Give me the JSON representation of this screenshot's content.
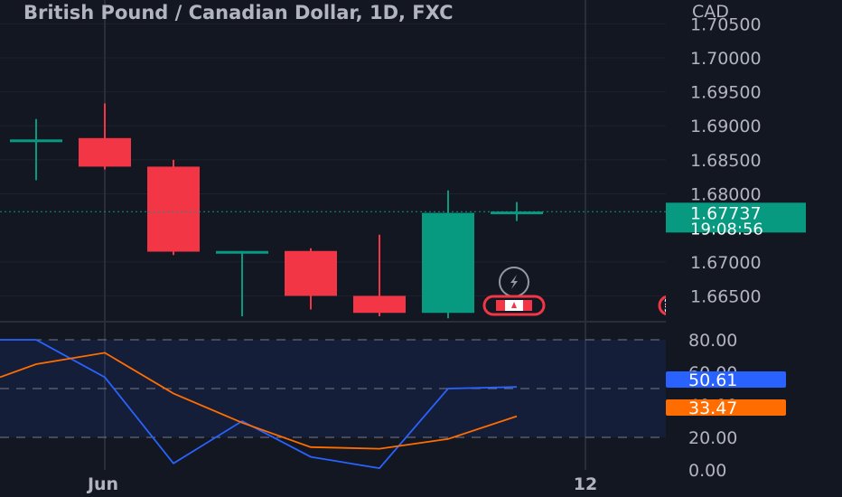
{
  "header": {
    "title": "British Pound / Canadian Dollar, 1D, FXC",
    "currency": "CAD"
  },
  "chart_data": [
    {
      "type": "candlestick",
      "title": "British Pound / Canadian Dollar, 1D, FXC",
      "ylim": [
        1.662,
        1.7085
      ],
      "y_ticks": [
        "1.70500",
        "1.70000",
        "1.69500",
        "1.69000",
        "1.68500",
        "1.68000",
        "1.67000",
        "1.66500"
      ],
      "y_tick_values": [
        1.705,
        1.7,
        1.695,
        1.69,
        1.685,
        1.68,
        1.67,
        1.665
      ],
      "x_ticks": [
        {
          "label": "Jun",
          "index": 1
        },
        {
          "label": "12",
          "index": 8
        }
      ],
      "candles": [
        {
          "open": 1.688,
          "high": 1.691,
          "low": 1.682,
          "close": 1.688
        },
        {
          "open": 1.6882,
          "high": 1.6933,
          "low": 1.6836,
          "close": 1.684
        },
        {
          "open": 1.684,
          "high": 1.685,
          "low": 1.671,
          "close": 1.6715
        },
        {
          "open": 1.6716,
          "high": 1.6716,
          "low": 1.662,
          "close": 1.6716
        },
        {
          "open": 1.6716,
          "high": 1.672,
          "low": 1.663,
          "close": 1.665
        },
        {
          "open": 1.665,
          "high": 1.674,
          "low": 1.662,
          "close": 1.6625
        },
        {
          "open": 1.6625,
          "high": 1.6805,
          "low": 1.6617,
          "close": 1.6772
        },
        {
          "open": 1.6773,
          "high": 1.6788,
          "low": 1.676,
          "close": 1.6774
        }
      ],
      "last_price": "1.67737",
      "countdown": "19:08:56",
      "colors": {
        "up": "#089981",
        "down": "#f23645",
        "background": "#131722"
      },
      "event_markers": [
        {
          "icon": "lightning-icon",
          "index": 7
        },
        {
          "icon": "canada-flag-icon",
          "index": 7
        },
        {
          "icon": "uk-flag-icon",
          "index": 9
        }
      ]
    },
    {
      "type": "line",
      "ylim": [
        0,
        90
      ],
      "y_ticks": [
        "80.00",
        "60.00",
        "40.00",
        "20.00",
        "0.00"
      ],
      "y_tick_values": [
        80,
        60,
        40,
        20,
        0
      ],
      "band": [
        20,
        80
      ],
      "x_start": -0.5,
      "series": [
        {
          "color": "#2962ff",
          "x": [
            -0.5,
            0,
            1,
            2,
            3,
            4,
            5,
            6,
            7
          ],
          "values": [
            80,
            80,
            57,
            4,
            30,
            8,
            1,
            50,
            51
          ]
        },
        {
          "color": "#ff6d00",
          "x": [
            -0.5,
            0,
            1,
            2,
            3,
            4,
            5,
            6,
            7
          ],
          "values": [
            57,
            65,
            72,
            47,
            29,
            14,
            13,
            19,
            33
          ]
        }
      ],
      "last_values": [
        {
          "label": "50.61",
          "value": 50.61,
          "color": "#2962ff"
        },
        {
          "label": "33.47",
          "value": 33.47,
          "color": "#ff6d00"
        }
      ]
    }
  ]
}
